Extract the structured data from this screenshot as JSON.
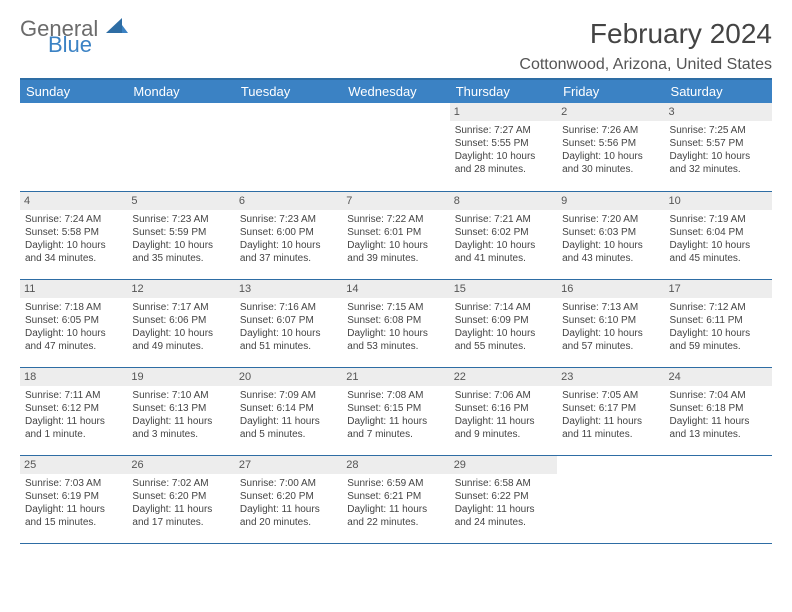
{
  "logo": {
    "text1": "General",
    "text2": "Blue"
  },
  "title": "February 2024",
  "location": "Cottonwood, Arizona, United States",
  "colors": {
    "header_bg": "#3b82c4",
    "rule": "#2e6da4",
    "daynum_bg": "#ededed",
    "text": "#444444"
  },
  "weekdays": [
    "Sunday",
    "Monday",
    "Tuesday",
    "Wednesday",
    "Thursday",
    "Friday",
    "Saturday"
  ],
  "weeks": [
    [
      null,
      null,
      null,
      null,
      {
        "n": "1",
        "sr": "Sunrise: 7:27 AM",
        "ss": "Sunset: 5:55 PM",
        "d1": "Daylight: 10 hours",
        "d2": "and 28 minutes."
      },
      {
        "n": "2",
        "sr": "Sunrise: 7:26 AM",
        "ss": "Sunset: 5:56 PM",
        "d1": "Daylight: 10 hours",
        "d2": "and 30 minutes."
      },
      {
        "n": "3",
        "sr": "Sunrise: 7:25 AM",
        "ss": "Sunset: 5:57 PM",
        "d1": "Daylight: 10 hours",
        "d2": "and 32 minutes."
      }
    ],
    [
      {
        "n": "4",
        "sr": "Sunrise: 7:24 AM",
        "ss": "Sunset: 5:58 PM",
        "d1": "Daylight: 10 hours",
        "d2": "and 34 minutes."
      },
      {
        "n": "5",
        "sr": "Sunrise: 7:23 AM",
        "ss": "Sunset: 5:59 PM",
        "d1": "Daylight: 10 hours",
        "d2": "and 35 minutes."
      },
      {
        "n": "6",
        "sr": "Sunrise: 7:23 AM",
        "ss": "Sunset: 6:00 PM",
        "d1": "Daylight: 10 hours",
        "d2": "and 37 minutes."
      },
      {
        "n": "7",
        "sr": "Sunrise: 7:22 AM",
        "ss": "Sunset: 6:01 PM",
        "d1": "Daylight: 10 hours",
        "d2": "and 39 minutes."
      },
      {
        "n": "8",
        "sr": "Sunrise: 7:21 AM",
        "ss": "Sunset: 6:02 PM",
        "d1": "Daylight: 10 hours",
        "d2": "and 41 minutes."
      },
      {
        "n": "9",
        "sr": "Sunrise: 7:20 AM",
        "ss": "Sunset: 6:03 PM",
        "d1": "Daylight: 10 hours",
        "d2": "and 43 minutes."
      },
      {
        "n": "10",
        "sr": "Sunrise: 7:19 AM",
        "ss": "Sunset: 6:04 PM",
        "d1": "Daylight: 10 hours",
        "d2": "and 45 minutes."
      }
    ],
    [
      {
        "n": "11",
        "sr": "Sunrise: 7:18 AM",
        "ss": "Sunset: 6:05 PM",
        "d1": "Daylight: 10 hours",
        "d2": "and 47 minutes."
      },
      {
        "n": "12",
        "sr": "Sunrise: 7:17 AM",
        "ss": "Sunset: 6:06 PM",
        "d1": "Daylight: 10 hours",
        "d2": "and 49 minutes."
      },
      {
        "n": "13",
        "sr": "Sunrise: 7:16 AM",
        "ss": "Sunset: 6:07 PM",
        "d1": "Daylight: 10 hours",
        "d2": "and 51 minutes."
      },
      {
        "n": "14",
        "sr": "Sunrise: 7:15 AM",
        "ss": "Sunset: 6:08 PM",
        "d1": "Daylight: 10 hours",
        "d2": "and 53 minutes."
      },
      {
        "n": "15",
        "sr": "Sunrise: 7:14 AM",
        "ss": "Sunset: 6:09 PM",
        "d1": "Daylight: 10 hours",
        "d2": "and 55 minutes."
      },
      {
        "n": "16",
        "sr": "Sunrise: 7:13 AM",
        "ss": "Sunset: 6:10 PM",
        "d1": "Daylight: 10 hours",
        "d2": "and 57 minutes."
      },
      {
        "n": "17",
        "sr": "Sunrise: 7:12 AM",
        "ss": "Sunset: 6:11 PM",
        "d1": "Daylight: 10 hours",
        "d2": "and 59 minutes."
      }
    ],
    [
      {
        "n": "18",
        "sr": "Sunrise: 7:11 AM",
        "ss": "Sunset: 6:12 PM",
        "d1": "Daylight: 11 hours",
        "d2": "and 1 minute."
      },
      {
        "n": "19",
        "sr": "Sunrise: 7:10 AM",
        "ss": "Sunset: 6:13 PM",
        "d1": "Daylight: 11 hours",
        "d2": "and 3 minutes."
      },
      {
        "n": "20",
        "sr": "Sunrise: 7:09 AM",
        "ss": "Sunset: 6:14 PM",
        "d1": "Daylight: 11 hours",
        "d2": "and 5 minutes."
      },
      {
        "n": "21",
        "sr": "Sunrise: 7:08 AM",
        "ss": "Sunset: 6:15 PM",
        "d1": "Daylight: 11 hours",
        "d2": "and 7 minutes."
      },
      {
        "n": "22",
        "sr": "Sunrise: 7:06 AM",
        "ss": "Sunset: 6:16 PM",
        "d1": "Daylight: 11 hours",
        "d2": "and 9 minutes."
      },
      {
        "n": "23",
        "sr": "Sunrise: 7:05 AM",
        "ss": "Sunset: 6:17 PM",
        "d1": "Daylight: 11 hours",
        "d2": "and 11 minutes."
      },
      {
        "n": "24",
        "sr": "Sunrise: 7:04 AM",
        "ss": "Sunset: 6:18 PM",
        "d1": "Daylight: 11 hours",
        "d2": "and 13 minutes."
      }
    ],
    [
      {
        "n": "25",
        "sr": "Sunrise: 7:03 AM",
        "ss": "Sunset: 6:19 PM",
        "d1": "Daylight: 11 hours",
        "d2": "and 15 minutes."
      },
      {
        "n": "26",
        "sr": "Sunrise: 7:02 AM",
        "ss": "Sunset: 6:20 PM",
        "d1": "Daylight: 11 hours",
        "d2": "and 17 minutes."
      },
      {
        "n": "27",
        "sr": "Sunrise: 7:00 AM",
        "ss": "Sunset: 6:20 PM",
        "d1": "Daylight: 11 hours",
        "d2": "and 20 minutes."
      },
      {
        "n": "28",
        "sr": "Sunrise: 6:59 AM",
        "ss": "Sunset: 6:21 PM",
        "d1": "Daylight: 11 hours",
        "d2": "and 22 minutes."
      },
      {
        "n": "29",
        "sr": "Sunrise: 6:58 AM",
        "ss": "Sunset: 6:22 PM",
        "d1": "Daylight: 11 hours",
        "d2": "and 24 minutes."
      },
      null,
      null
    ]
  ]
}
